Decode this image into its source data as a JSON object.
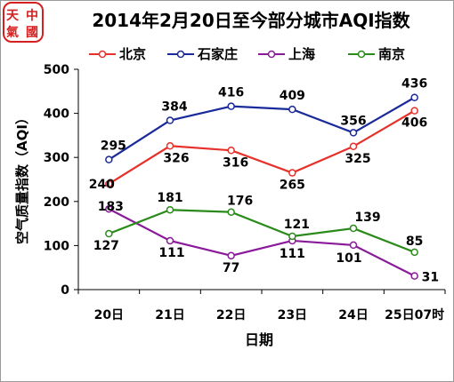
{
  "logo": {
    "glyphs": "中國天氣",
    "color": "#d42020"
  },
  "chart_data": {
    "type": "line",
    "title": "2014年2月20日至今部分城市AQI指数",
    "xlabel": "日期",
    "ylabel": "空气质量指数（AQI）",
    "categories": [
      "20日",
      "21日",
      "22日",
      "23日",
      "24日",
      "25日07时"
    ],
    "ylim": [
      0,
      500
    ],
    "yticks": [
      0,
      100,
      200,
      300,
      400,
      500
    ],
    "grid": false,
    "legend_position": "top",
    "series": [
      {
        "name": "北京",
        "color": "#e8302a",
        "values": [
          240,
          326,
          316,
          265,
          325,
          406
        ]
      },
      {
        "name": "石家庄",
        "color": "#1a2a9a",
        "values": [
          295,
          384,
          416,
          409,
          356,
          436
        ]
      },
      {
        "name": "上海",
        "color": "#8a1a9a",
        "values": [
          183,
          111,
          77,
          111,
          101,
          31
        ]
      },
      {
        "name": "南京",
        "color": "#2a8a1a",
        "values": [
          127,
          181,
          176,
          121,
          139,
          85
        ]
      }
    ]
  }
}
